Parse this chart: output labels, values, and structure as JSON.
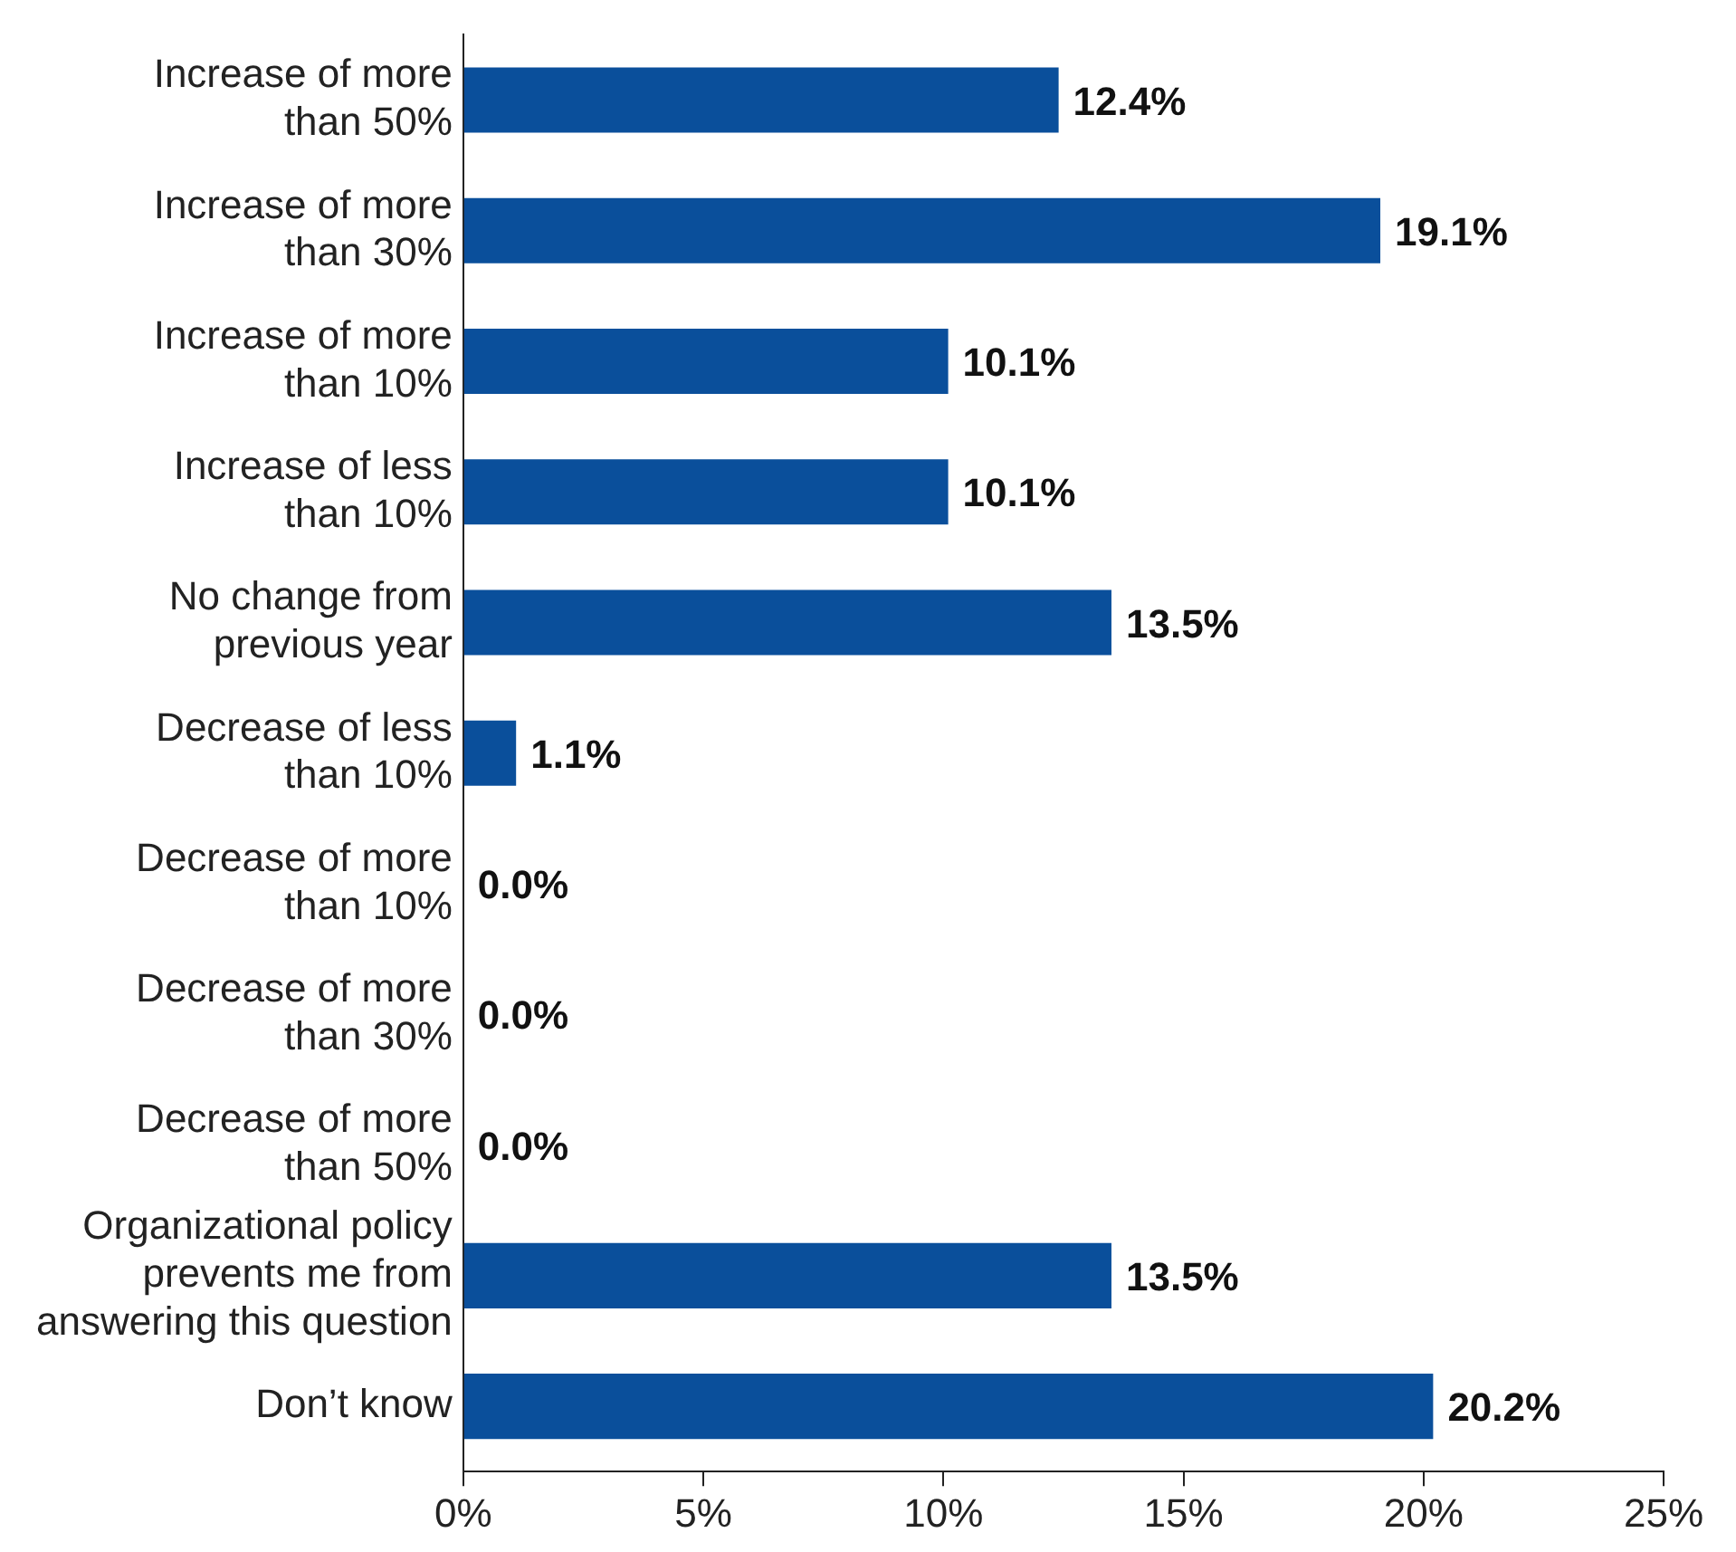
{
  "chart_data": {
    "type": "bar",
    "orientation": "horizontal",
    "categories": [
      "Increase of more\nthan 50%",
      "Increase of more\nthan 30%",
      "Increase of more\nthan 10%",
      "Increase of less\nthan 10%",
      "No change from\nprevious year",
      "Decrease of less\nthan 10%",
      "Decrease of more\nthan 10%",
      "Decrease of more\nthan 30%",
      "Decrease of more\nthan 50%",
      "Organizational policy\nprevents me from\nanswering this question",
      "Don’t know"
    ],
    "values": [
      12.4,
      19.1,
      10.1,
      10.1,
      13.5,
      1.1,
      0,
      0,
      0,
      13.5,
      20.2
    ],
    "color": "#0a4f9b",
    "xlim": [
      0,
      25
    ],
    "xticks": [
      {
        "value": 0,
        "label": "0%"
      },
      {
        "value": 5,
        "label": "5%"
      },
      {
        "value": 10,
        "label": "10%"
      },
      {
        "value": 15,
        "label": "15%"
      },
      {
        "value": 20,
        "label": "20%"
      },
      {
        "value": 25,
        "label": "25%"
      }
    ],
    "value_labels": [
      "12.4%",
      "19.1%",
      "10.1%",
      "10.1%",
      "13.5%",
      "1.1%",
      "0.0%",
      "0.0%",
      "0.0%",
      "13.5%",
      "20.2%"
    ],
    "grid": false,
    "legend": false
  }
}
